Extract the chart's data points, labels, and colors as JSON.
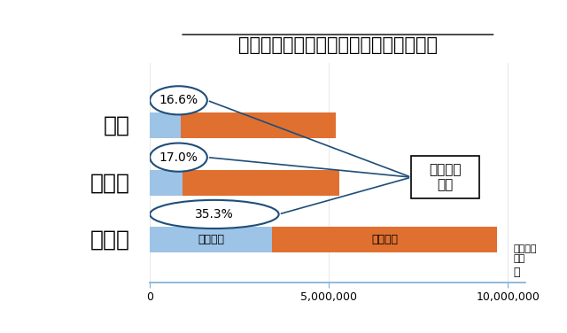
{
  "title": "（図１）世界生産の内、国内生産分は？",
  "categories": [
    "日産",
    "ホンダ",
    "トヨタ"
  ],
  "domestic": [
    863000,
    901000,
    3422000
  ],
  "overseas": [
    4337000,
    4399000,
    6278000
  ],
  "percentages": [
    "16.6%",
    "17.0%",
    "35.3%"
  ],
  "domestic_label": "国内生産",
  "overseas_label": "海外生産",
  "annotation_label": "国内生産\n比率",
  "xlabel": "世界生産\n台数",
  "unit_label": "台",
  "xlim": [
    0,
    10500000
  ],
  "xticks": [
    0,
    5000000,
    10000000
  ],
  "xtick_labels": [
    "0",
    "5,000,000",
    "10,000,000"
  ],
  "bar_color_domestic": "#9DC3E6",
  "bar_color_overseas": "#E07030",
  "bg_color": "#FFFFFF",
  "title_fontsize": 15,
  "label_fontsize": 15,
  "tick_fontsize": 9,
  "bar_height": 0.45
}
